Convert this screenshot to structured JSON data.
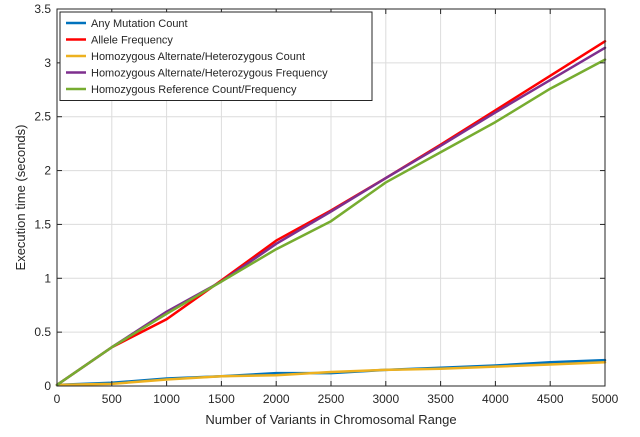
{
  "chart_data": {
    "type": "line",
    "title": "",
    "xlabel": "Number of Variants in Chromosomal Range",
    "ylabel": "Execution time (seconds)",
    "xlim": [
      0,
      5000
    ],
    "ylim": [
      0,
      3.5
    ],
    "xticks": [
      0,
      500,
      1000,
      1500,
      2000,
      2500,
      3000,
      3500,
      4000,
      4500,
      5000
    ],
    "xtick_labels": [
      "0",
      "500",
      "1000",
      "1500",
      "2000",
      "2500",
      "3000",
      "3500",
      "4000",
      "4500",
      "5000"
    ],
    "yticks": [
      0,
      0.5,
      1,
      1.5,
      2,
      2.5,
      3,
      3.5
    ],
    "ytick_labels": [
      "0",
      "0.5",
      "1",
      "1.5",
      "2",
      "2.5",
      "3",
      "3.5"
    ],
    "grid": true,
    "legend_position": "top-left",
    "x": [
      0,
      500,
      1000,
      1500,
      2000,
      2500,
      3000,
      3500,
      4000,
      4500,
      5000
    ],
    "series": [
      {
        "name": "Any Mutation Count",
        "color": "#0072BD",
        "values": [
          0.01,
          0.03,
          0.07,
          0.09,
          0.12,
          0.12,
          0.15,
          0.17,
          0.19,
          0.22,
          0.24
        ]
      },
      {
        "name": "Allele Frequency",
        "color": "#FF0000",
        "values": [
          0.01,
          0.36,
          0.62,
          0.98,
          1.35,
          1.63,
          1.93,
          2.24,
          2.56,
          2.88,
          3.2
        ]
      },
      {
        "name": "Homozygous Alternate/Heterozygous Count",
        "color": "#EDB120",
        "values": [
          0.01,
          0.02,
          0.06,
          0.09,
          0.1,
          0.13,
          0.15,
          0.16,
          0.18,
          0.2,
          0.22
        ]
      },
      {
        "name": "Homozygous Alternate/Heterozygous Frequency",
        "color": "#7E2F8E",
        "values": [
          0.01,
          0.36,
          0.69,
          0.97,
          1.32,
          1.62,
          1.93,
          2.23,
          2.54,
          2.84,
          3.14
        ]
      },
      {
        "name": "Homozygous Reference Count/Frequency",
        "color": "#77AC30",
        "values": [
          0.01,
          0.36,
          0.67,
          0.97,
          1.27,
          1.53,
          1.89,
          2.17,
          2.45,
          2.76,
          3.03
        ]
      }
    ]
  }
}
